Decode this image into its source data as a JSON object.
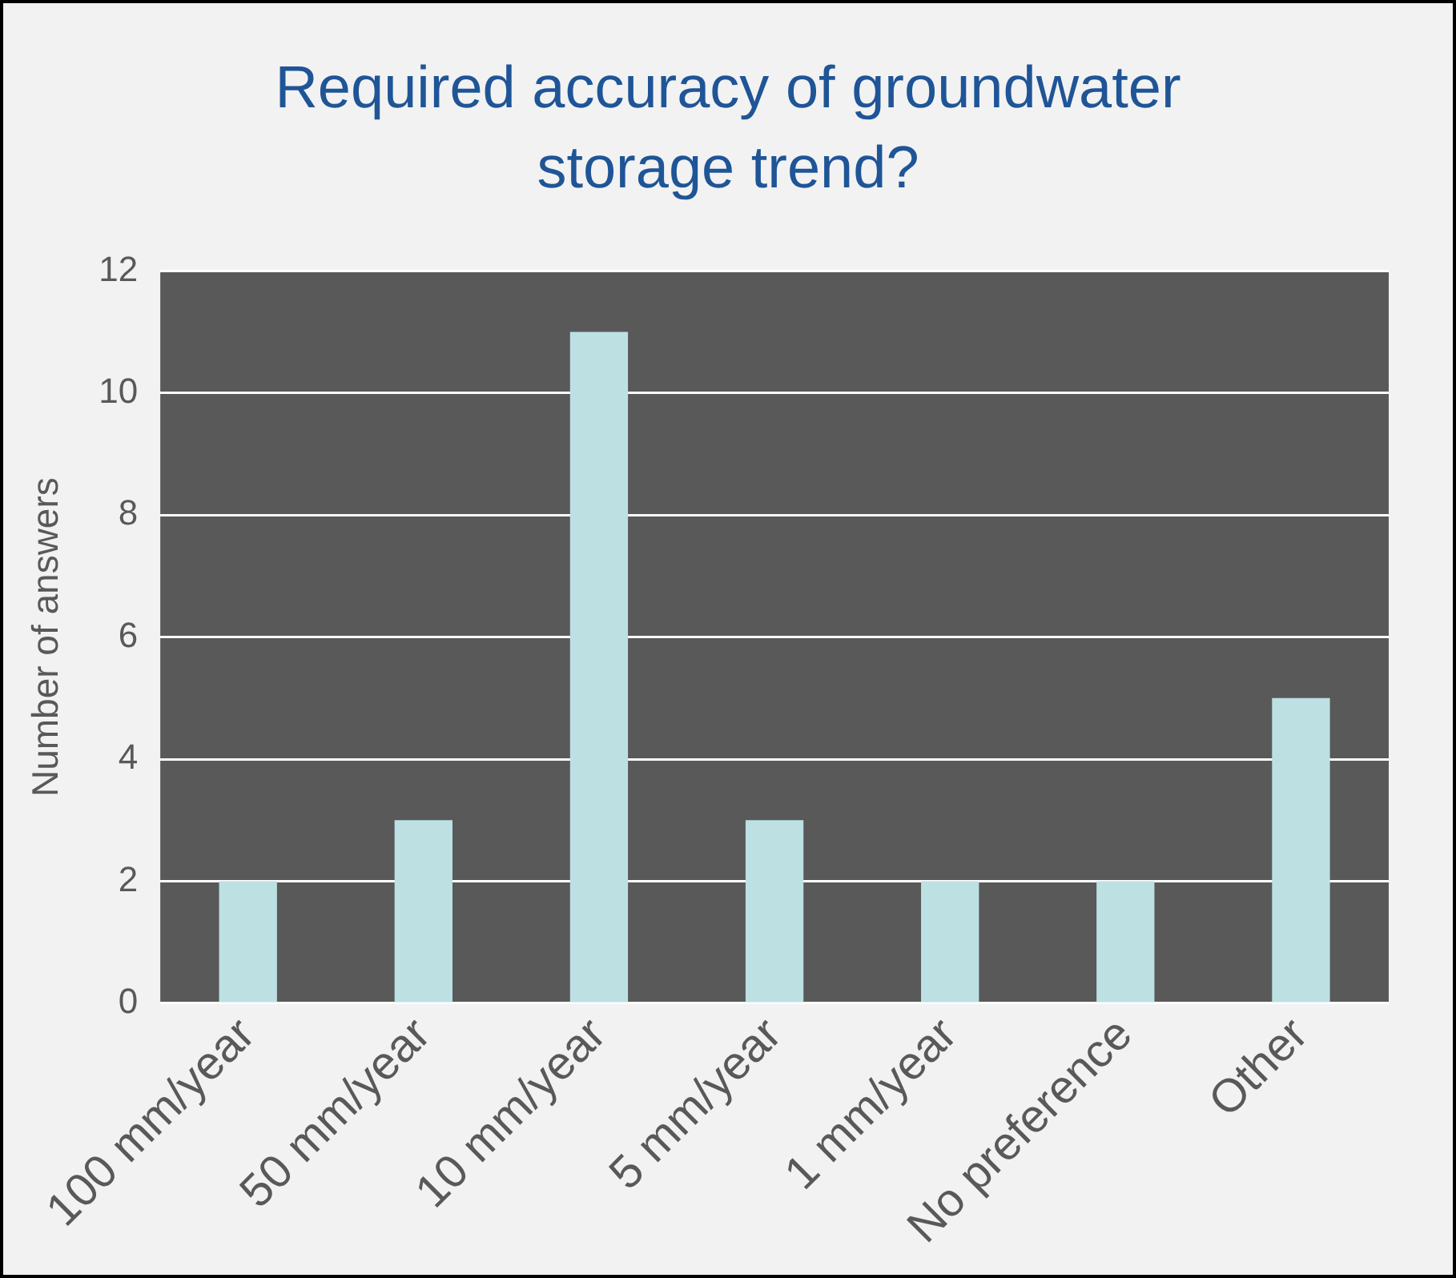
{
  "chart_data": {
    "type": "bar",
    "title": "Required accuracy of groundwater storage trend?",
    "ylabel": "Number of answers",
    "categories": [
      "100 mm/year",
      "50 mm/year",
      "10 mm/year",
      "5 mm/year",
      "1 mm/year",
      "No preference",
      "Other"
    ],
    "values": [
      2,
      3,
      11,
      3,
      2,
      2,
      5
    ],
    "color": "#bde0e3",
    "ylim": [
      0,
      12
    ],
    "yticks": [
      0,
      2,
      4,
      6,
      8,
      10,
      12
    ],
    "grid": "y",
    "legend": false
  }
}
